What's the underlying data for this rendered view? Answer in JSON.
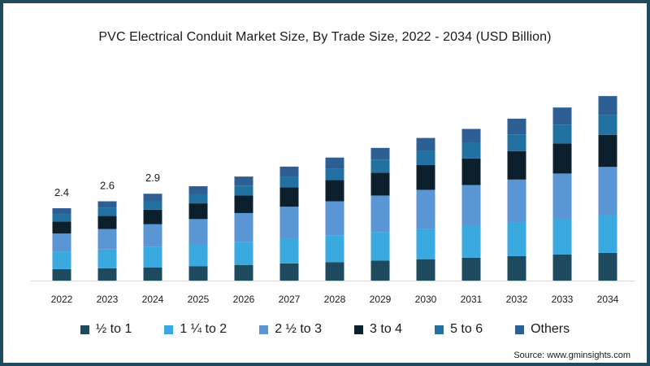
{
  "chart_data": {
    "type": "bar",
    "stacked": true,
    "title": "PVC Electrical Conduit Market Size, By Trade Size, 2022 - 2034 (USD Billion)",
    "xlabel": "",
    "ylabel": "",
    "categories": [
      "2022",
      "2023",
      "2024",
      "2025",
      "2026",
      "2027",
      "2028",
      "2029",
      "2030",
      "2031",
      "2032",
      "2033",
      "2034"
    ],
    "totals_labels": [
      "2.4",
      "2.6",
      "2.9"
    ],
    "series": [
      {
        "name": "½ to 1",
        "color": "#1d4a5e",
        "values": [
          0.38,
          0.41,
          0.44,
          0.48,
          0.52,
          0.57,
          0.61,
          0.66,
          0.71,
          0.76,
          0.81,
          0.87,
          0.92
        ]
      },
      {
        "name": "1 ¼ to 2",
        "color": "#3aa9e0",
        "values": [
          0.58,
          0.62,
          0.67,
          0.72,
          0.77,
          0.82,
          0.88,
          0.94,
          1.0,
          1.06,
          1.12,
          1.18,
          1.25
        ]
      },
      {
        "name": "2 ½ to 3",
        "color": "#5b96d4",
        "values": [
          0.6,
          0.68,
          0.76,
          0.84,
          0.95,
          1.06,
          1.14,
          1.22,
          1.3,
          1.35,
          1.42,
          1.5,
          1.6
        ]
      },
      {
        "name": "3 to 4",
        "color": "#0b1f2c",
        "values": [
          0.4,
          0.44,
          0.48,
          0.52,
          0.58,
          0.64,
          0.7,
          0.76,
          0.82,
          0.88,
          0.94,
          1.0,
          1.06
        ]
      },
      {
        "name": "5 to 6",
        "color": "#2172a3",
        "values": [
          0.24,
          0.26,
          0.28,
          0.3,
          0.33,
          0.36,
          0.39,
          0.43,
          0.47,
          0.51,
          0.56,
          0.62,
          0.67
        ]
      },
      {
        "name": "Others",
        "color": "#2d5f94",
        "values": [
          0.2,
          0.22,
          0.25,
          0.27,
          0.3,
          0.33,
          0.36,
          0.39,
          0.43,
          0.47,
          0.52,
          0.57,
          0.62
        ]
      }
    ],
    "ylim": [
      0,
      6.5
    ],
    "grid": false,
    "legend_position": "bottom"
  },
  "source": "Source: www.gminsights.com"
}
